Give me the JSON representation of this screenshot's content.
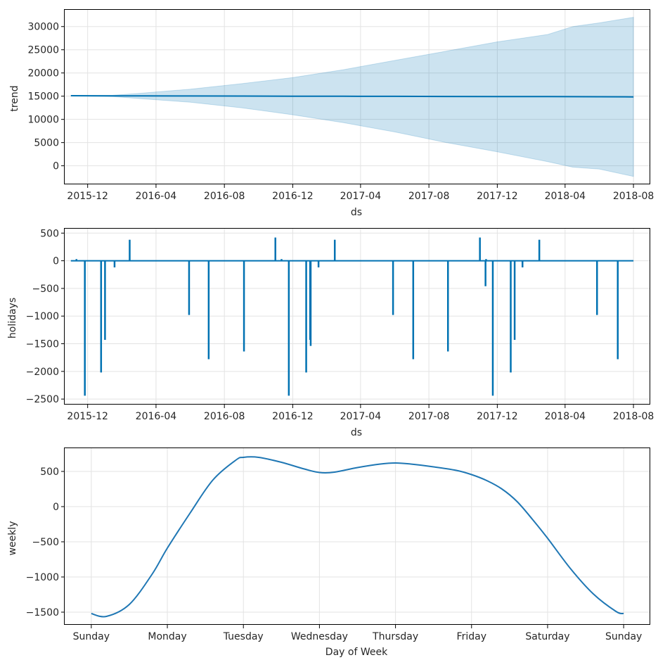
{
  "chart_data": [
    {
      "type": "area",
      "xlabel": "ds",
      "ylabel": "trend",
      "x_ticks": [
        "2015-12",
        "2016-04",
        "2016-08",
        "2016-12",
        "2017-04",
        "2017-08",
        "2017-12",
        "2018-04",
        "2018-08"
      ],
      "y_ticks": [
        "0",
        "5000",
        "10000",
        "15000",
        "20000",
        "25000",
        "30000"
      ],
      "x_range": [
        "2015-10-21",
        "2018-08-31"
      ],
      "ylim": [
        -4000,
        33600
      ],
      "grid": true,
      "color": "#0072B2",
      "band_color": "#0072B2",
      "series": [
        {
          "x": [
            "2015-11-01",
            "2016-01-15",
            "2016-03-01",
            "2016-06-01",
            "2016-09-01",
            "2016-12-01",
            "2017-03-01",
            "2017-06-01",
            "2017-09-01",
            "2017-12-01",
            "2018-03-01",
            "2018-04-15",
            "2018-06-01",
            "2018-08-01"
          ],
          "trend": [
            15100,
            15080,
            15060,
            15040,
            15020,
            15000,
            14980,
            14960,
            14940,
            14920,
            14900,
            14890,
            14880,
            14850
          ],
          "upper": [
            15100,
            15200,
            15600,
            16500,
            17700,
            19000,
            20700,
            22700,
            24700,
            26700,
            28300,
            30000,
            30800,
            32000
          ],
          "lower": [
            15100,
            14900,
            14500,
            13700,
            12500,
            11000,
            9300,
            7300,
            5000,
            3000,
            900,
            -300,
            -700,
            -2300
          ]
        }
      ]
    },
    {
      "type": "line",
      "xlabel": "ds",
      "ylabel": "holidays",
      "x_ticks": [
        "2015-12",
        "2016-04",
        "2016-08",
        "2016-12",
        "2017-04",
        "2017-08",
        "2017-12",
        "2018-04",
        "2018-08"
      ],
      "y_ticks": [
        "500",
        "0",
        "−500",
        "−1000",
        "−1500",
        "−2000",
        "−2500"
      ],
      "x_range": [
        "2015-10-21",
        "2018-08-31"
      ],
      "ylim": [
        -2600,
        580
      ],
      "grid": true,
      "color": "#0072B2",
      "x_start": "2015-11-01",
      "x_end": "2018-08-01",
      "spikes": [
        {
          "x": "2015-11-11",
          "y": 30
        },
        {
          "x": "2015-11-26",
          "y": -2440
        },
        {
          "x": "2015-12-25",
          "y": -2020
        },
        {
          "x": "2016-01-01",
          "y": -1430
        },
        {
          "x": "2016-01-18",
          "y": -120
        },
        {
          "x": "2016-02-14",
          "y": 380
        },
        {
          "x": "2016-05-30",
          "y": -980
        },
        {
          "x": "2016-07-04",
          "y": -1780
        },
        {
          "x": "2016-09-05",
          "y": -1640
        },
        {
          "x": "2016-10-31",
          "y": 420
        },
        {
          "x": "2016-11-11",
          "y": 30
        },
        {
          "x": "2016-11-24",
          "y": -2440
        },
        {
          "x": "2016-12-25",
          "y": -2020
        },
        {
          "x": "2017-01-01",
          "y": -1430
        },
        {
          "x": "2017-01-02",
          "y": -1540
        },
        {
          "x": "2017-01-16",
          "y": -120
        },
        {
          "x": "2017-02-14",
          "y": 380
        },
        {
          "x": "2017-05-29",
          "y": -980
        },
        {
          "x": "2017-07-04",
          "y": -1780
        },
        {
          "x": "2017-09-04",
          "y": -1640
        },
        {
          "x": "2017-10-31",
          "y": 420
        },
        {
          "x": "2017-11-10",
          "y": -460
        },
        {
          "x": "2017-11-11",
          "y": 30
        },
        {
          "x": "2017-11-23",
          "y": -2440
        },
        {
          "x": "2017-12-25",
          "y": -2020
        },
        {
          "x": "2018-01-01",
          "y": -1430
        },
        {
          "x": "2018-01-15",
          "y": -120
        },
        {
          "x": "2018-02-14",
          "y": 380
        },
        {
          "x": "2018-05-28",
          "y": -980
        },
        {
          "x": "2018-07-04",
          "y": -1780
        }
      ]
    },
    {
      "type": "line",
      "xlabel": "Day of Week",
      "ylabel": "weekly",
      "categories": [
        "Sunday",
        "Monday",
        "Tuesday",
        "Wednesday",
        "Thursday",
        "Friday",
        "Saturday",
        "Sunday"
      ],
      "y_ticks": [
        "500",
        "0",
        "−500",
        "−1000",
        "−1500"
      ],
      "xlim": [
        -0.35,
        7.35
      ],
      "ylim": [
        -1680,
        830
      ],
      "grid": true,
      "color": "#1f77b4",
      "series": [
        {
          "x": [
            0,
            0.2,
            0.5,
            0.8,
            1.0,
            1.3,
            1.6,
            1.9,
            2.0,
            2.2,
            2.5,
            2.8,
            3.0,
            3.2,
            3.5,
            3.8,
            4.0,
            4.2,
            4.5,
            4.8,
            5.0,
            5.2,
            5.4,
            5.6,
            5.8,
            6.0,
            6.3,
            6.6,
            6.9,
            7.0
          ],
          "y": [
            -1520,
            -1560,
            -1390,
            -960,
            -590,
            -90,
            380,
            660,
            700,
            700,
            630,
            535,
            485,
            490,
            555,
            605,
            620,
            605,
            565,
            515,
            455,
            370,
            250,
            70,
            -180,
            -450,
            -880,
            -1240,
            -1490,
            -1520
          ]
        }
      ]
    }
  ]
}
